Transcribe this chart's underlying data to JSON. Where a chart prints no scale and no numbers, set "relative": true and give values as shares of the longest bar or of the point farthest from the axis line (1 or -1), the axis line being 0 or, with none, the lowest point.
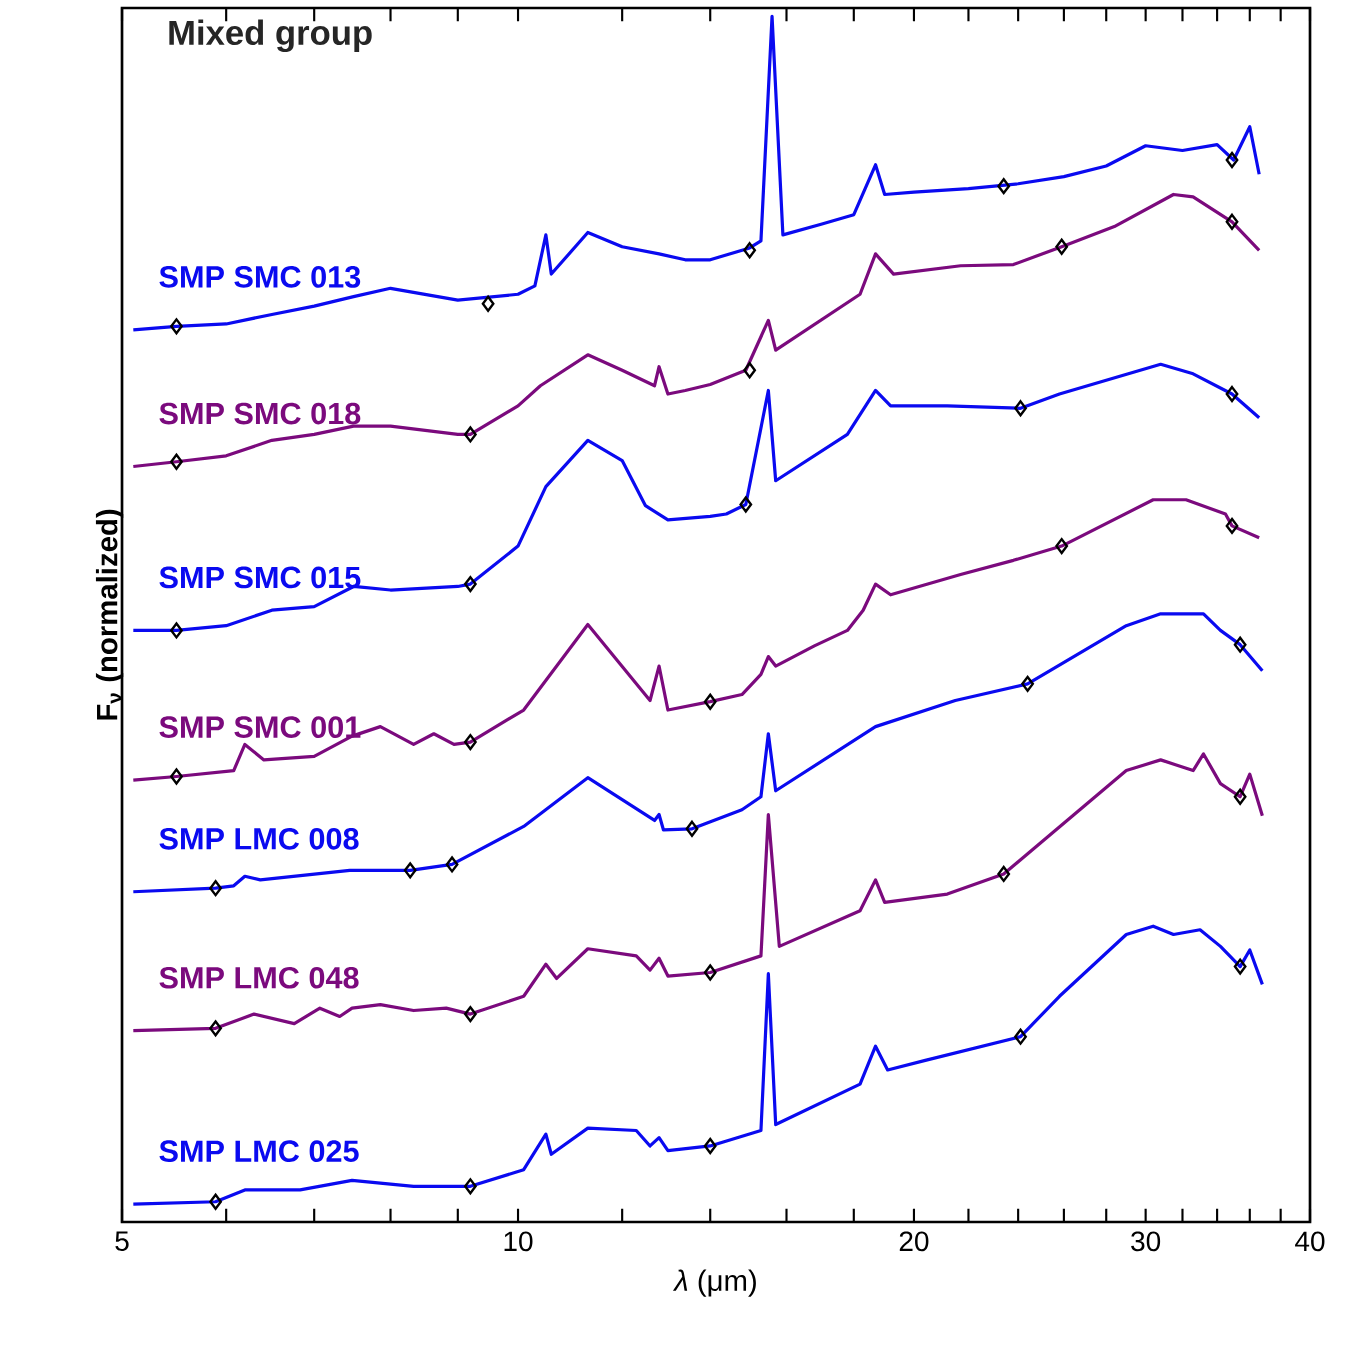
{
  "chart_data": {
    "type": "line",
    "title": "Mixed group",
    "xlabel": "*λ* (μm)",
    "ylabel": "F$_{ν}$ (normalized)",
    "relative": true,
    "log": "x",
    "xlim": [
      5,
      40
    ],
    "xticks": [
      5,
      {
        "value": 6,
        "label": null
      },
      {
        "value": 7,
        "label": null
      },
      {
        "value": 8,
        "label": null
      },
      {
        "value": 9,
        "label": null
      },
      10,
      {
        "value": 12,
        "label": null
      },
      {
        "value": 14,
        "label": null
      },
      {
        "value": 16,
        "label": null
      },
      {
        "value": 18,
        "label": null
      },
      20,
      {
        "value": 22,
        "label": null
      },
      {
        "value": 24,
        "label": null
      },
      {
        "value": 26,
        "label": null
      },
      {
        "value": 28,
        "label": null
      },
      30,
      {
        "value": 32,
        "label": null
      },
      {
        "value": 34,
        "label": null
      },
      {
        "value": 36,
        "label": null
      },
      {
        "value": 38,
        "label": null
      },
      40
    ],
    "series": [
      {
        "name": "SMP SMC 013",
        "color": "#0a0af0",
        "x": [
          5.1,
          5.5,
          6,
          6.5,
          7,
          7.5,
          8,
          9,
          10,
          10.3,
          10.5,
          10.6,
          11.3,
          12,
          12.8,
          13.4,
          14,
          15,
          15.3,
          15.6,
          15.9,
          17,
          18,
          18.7,
          19,
          20,
          22,
          24,
          26,
          28,
          30,
          32,
          34,
          35,
          36,
          36.6
        ],
        "values": [
          0.736,
          0.739,
          0.741,
          0.749,
          0.756,
          0.764,
          0.771,
          0.761,
          0.766,
          0.773,
          0.816,
          0.783,
          0.818,
          0.806,
          0.8,
          0.795,
          0.795,
          0.805,
          0.811,
          1.0,
          0.816,
          0.825,
          0.833,
          0.875,
          0.85,
          0.852,
          0.855,
          0.859,
          0.865,
          0.874,
          0.891,
          0.887,
          0.892,
          0.879,
          0.907,
          0.867
        ]
      },
      {
        "name": "SMP SMC 018",
        "color": "#7b0a7d",
        "x": [
          5.1,
          5.5,
          6,
          6.5,
          7,
          7.5,
          8,
          9,
          9.2,
          10,
          10.4,
          11.3,
          12,
          12.7,
          12.8,
          13,
          13.4,
          14,
          14.9,
          15.5,
          15.7,
          18.2,
          18.7,
          19.3,
          21.7,
          23.8,
          25.9,
          28.4,
          31.5,
          32.6,
          34.9,
          36.6
        ],
        "values": [
          0.621,
          0.625,
          0.63,
          0.643,
          0.648,
          0.655,
          0.655,
          0.648,
          0.648,
          0.672,
          0.689,
          0.715,
          0.702,
          0.689,
          0.705,
          0.682,
          0.685,
          0.69,
          0.702,
          0.744,
          0.719,
          0.766,
          0.8,
          0.783,
          0.79,
          0.791,
          0.806,
          0.823,
          0.85,
          0.848,
          0.827,
          0.803
        ]
      },
      {
        "name": "SMP SMC 015",
        "color": "#0a0af0",
        "x": [
          5.1,
          5.5,
          6,
          6.5,
          7,
          7.5,
          8,
          9,
          9.2,
          10,
          10.5,
          11.3,
          12,
          12.5,
          13,
          14,
          14.4,
          14.9,
          15.5,
          15.7,
          17.8,
          18.7,
          19.2,
          21.2,
          24.1,
          25.8,
          30.8,
          32.6,
          34.9,
          36.6
        ],
        "values": [
          0.483,
          0.483,
          0.487,
          0.5,
          0.503,
          0.52,
          0.517,
          0.52,
          0.522,
          0.554,
          0.604,
          0.643,
          0.626,
          0.588,
          0.576,
          0.579,
          0.581,
          0.589,
          0.685,
          0.609,
          0.648,
          0.685,
          0.672,
          0.672,
          0.67,
          0.682,
          0.707,
          0.699,
          0.682,
          0.662
        ]
      },
      {
        "name": "SMP SMC 001",
        "color": "#7b0a7d",
        "x": [
          5.1,
          5.5,
          6.08,
          6.2,
          6.41,
          7,
          7.48,
          7.86,
          8.33,
          8.63,
          8.94,
          9.2,
          10.1,
          11.3,
          12.6,
          12.8,
          13,
          14,
          14.8,
          15.3,
          15.5,
          15.7,
          16.8,
          17.8,
          18.3,
          18.7,
          19.2,
          21.7,
          23.8,
          25.9,
          30.4,
          32.2,
          34.5,
          34.9,
          36.6
        ],
        "values": [
          0.357,
          0.36,
          0.365,
          0.387,
          0.374,
          0.377,
          0.394,
          0.402,
          0.387,
          0.396,
          0.387,
          0.389,
          0.416,
          0.488,
          0.424,
          0.453,
          0.416,
          0.423,
          0.429,
          0.446,
          0.461,
          0.453,
          0.47,
          0.483,
          0.5,
          0.522,
          0.513,
          0.53,
          0.542,
          0.554,
          0.593,
          0.593,
          0.581,
          0.571,
          0.561
        ]
      },
      {
        "name": "SMP LMC 008",
        "color": "#0a0af0",
        "x": [
          5.1,
          5.89,
          6.08,
          6.2,
          6.37,
          7.45,
          8.28,
          8.91,
          10.1,
          11.3,
          12.7,
          12.8,
          12.9,
          13.56,
          14.8,
          15.3,
          15.5,
          15.7,
          18.7,
          21.5,
          24.4,
          29.0,
          30.8,
          33.2,
          34.2,
          35.4,
          36.8
        ],
        "values": [
          0.263,
          0.266,
          0.268,
          0.276,
          0.273,
          0.281,
          0.281,
          0.286,
          0.318,
          0.359,
          0.323,
          0.328,
          0.315,
          0.316,
          0.332,
          0.343,
          0.396,
          0.348,
          0.402,
          0.424,
          0.438,
          0.487,
          0.497,
          0.497,
          0.483,
          0.471,
          0.449
        ]
      },
      {
        "name": "SMP LMC 048",
        "color": "#7b0a7d",
        "x": [
          5.1,
          5.89,
          6.3,
          6.76,
          7.07,
          7.32,
          7.48,
          7.86,
          8.33,
          8.82,
          9.2,
          10.1,
          10.5,
          10.7,
          11.3,
          12.3,
          12.6,
          12.8,
          13,
          14,
          15.3,
          15.5,
          15.8,
          18.2,
          18.7,
          19,
          21.2,
          23.4,
          29,
          30.8,
          32.6,
          33.2,
          34.2,
          35.4,
          36,
          36.8
        ],
        "values": [
          0.146,
          0.148,
          0.16,
          0.152,
          0.165,
          0.158,
          0.165,
          0.168,
          0.163,
          0.165,
          0.16,
          0.175,
          0.202,
          0.19,
          0.215,
          0.209,
          0.197,
          0.207,
          0.192,
          0.195,
          0.209,
          0.328,
          0.217,
          0.247,
          0.273,
          0.254,
          0.261,
          0.278,
          0.365,
          0.374,
          0.365,
          0.379,
          0.354,
          0.343,
          0.362,
          0.327
        ]
      },
      {
        "name": "SMP LMC 025",
        "color": "#0a0af0",
        "x": [
          5.1,
          5.89,
          6.2,
          6.83,
          7.48,
          8.33,
          8.94,
          9.2,
          10.1,
          10.5,
          10.6,
          11.3,
          12.3,
          12.6,
          12.8,
          13,
          14,
          15.3,
          15.5,
          15.7,
          18.2,
          18.7,
          19.1,
          20.4,
          24.1,
          25.8,
          29,
          30.4,
          31.5,
          33,
          34.2,
          35.4,
          36,
          36.8
        ],
        "values": [
          0,
          0.002,
          0.012,
          0.012,
          0.02,
          0.015,
          0.015,
          0.015,
          0.029,
          0.059,
          0.042,
          0.064,
          0.062,
          0.049,
          0.056,
          0.045,
          0.049,
          0.062,
          0.194,
          0.067,
          0.101,
          0.133,
          0.113,
          0.121,
          0.141,
          0.175,
          0.227,
          0.234,
          0.227,
          0.231,
          0.217,
          0.2,
          0.214,
          0.185
        ]
      },
      {
        "type": "scatter",
        "color": "#000000",
        "marker": "diamond",
        "x": [
          5.5,
          9.49,
          15,
          23.4,
          34.9,
          5.5,
          9.2,
          15,
          25.9,
          34.9,
          5.5,
          9.2,
          14.9,
          24.1,
          34.9,
          5.5,
          9.2,
          14,
          25.9,
          34.9,
          5.89,
          8.28,
          8.91,
          13.56,
          24.4,
          35.4,
          5.89,
          9.2,
          14,
          23.4,
          35.4,
          5.89,
          9.2,
          14,
          24.1,
          35.4
        ],
        "values": [
          0.739,
          0.758,
          0.803,
          0.857,
          0.879,
          0.625,
          0.648,
          0.702,
          0.806,
          0.827,
          0.483,
          0.522,
          0.589,
          0.67,
          0.682,
          0.36,
          0.389,
          0.423,
          0.554,
          0.571,
          0.266,
          0.281,
          0.286,
          0.316,
          0.438,
          0.471,
          0.148,
          0.16,
          0.195,
          0.278,
          0.343,
          0.002,
          0.015,
          0.049,
          0.141,
          0.2
        ]
      }
    ]
  }
}
